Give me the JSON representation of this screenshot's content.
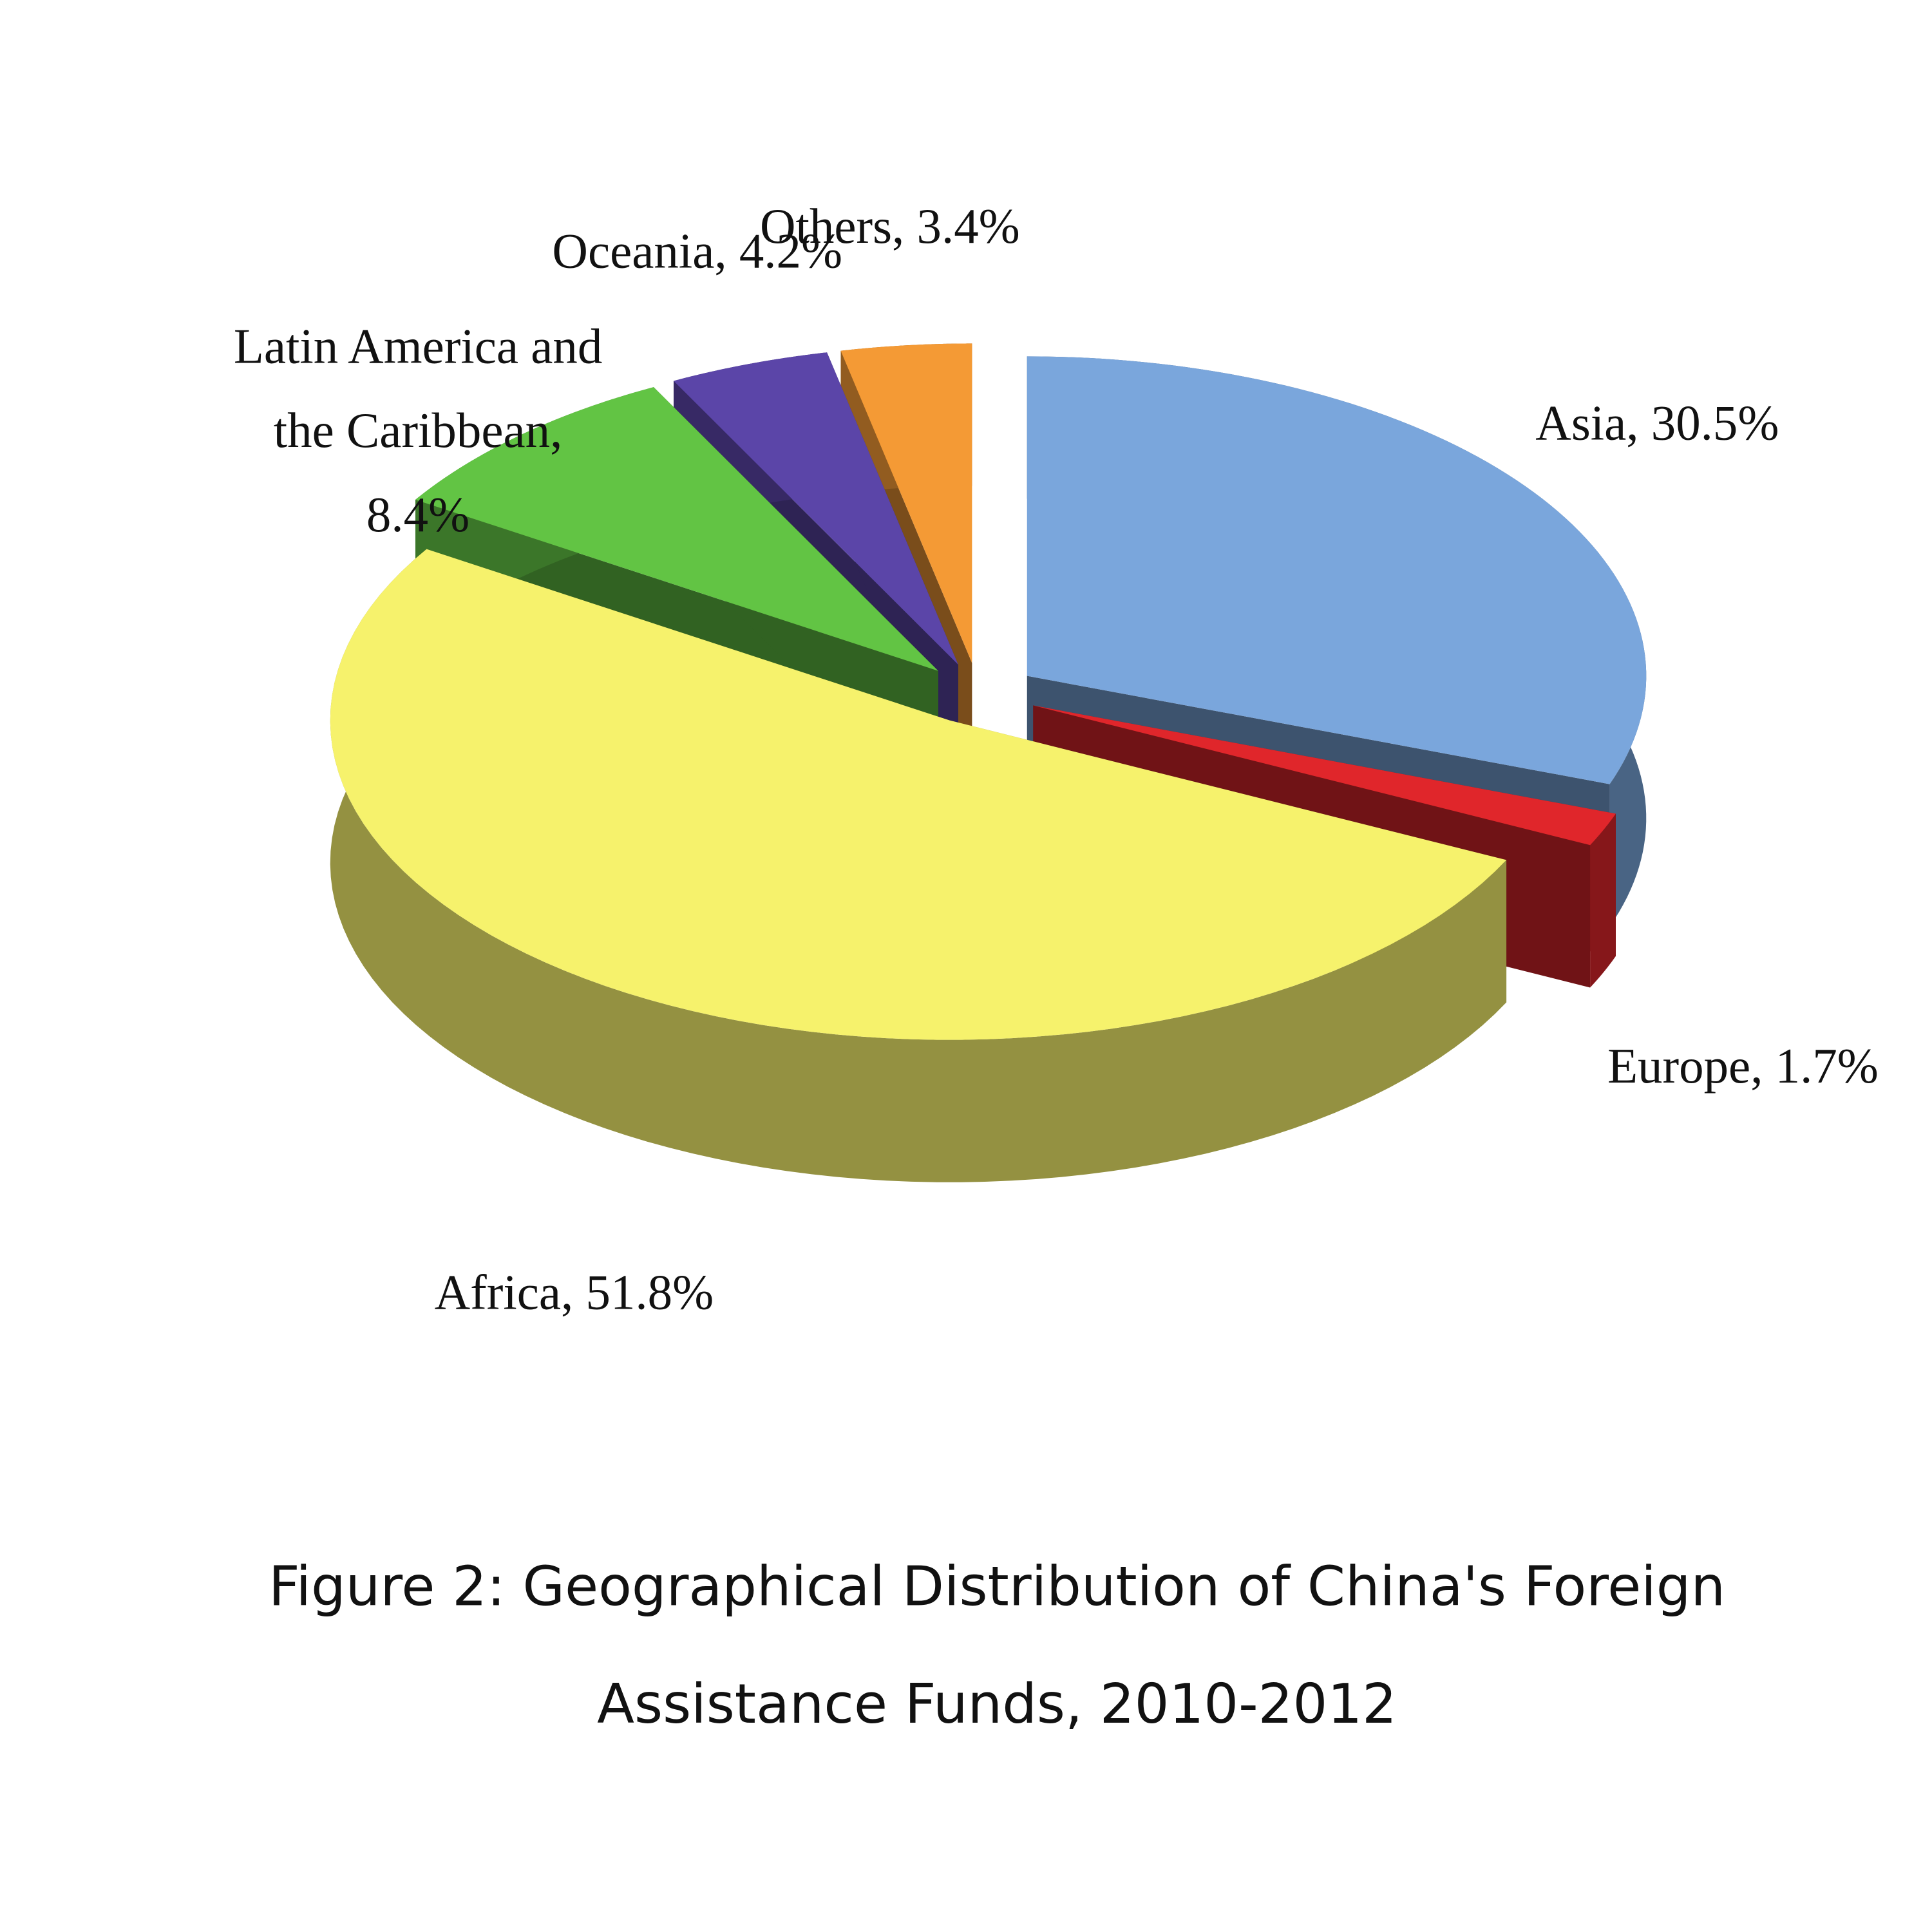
{
  "chart_data": {
    "type": "pie",
    "title": "Figure 2: Geographical Distribution of China's Foreign Assistance Funds, 2010-2012",
    "values": [
      30.5,
      1.7,
      51.8,
      8.4,
      4.2,
      3.4
    ],
    "value_labels": [
      "Asia, 30.5%",
      "Europe, 1.7%",
      "Africa, 51.8%",
      "Latin America and the Caribbean, 8.4%",
      "Oceania, 4.2%",
      "Others, 3.4%"
    ],
    "colors": [
      "#7aa6dc",
      "#e0262b",
      "#f6f26c",
      "#62c444",
      "#5b45a8",
      "#f49a35"
    ]
  }
}
